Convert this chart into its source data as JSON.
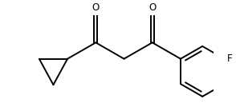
{
  "background_color": "#ffffff",
  "line_color": "#000000",
  "line_width": 1.4,
  "font_size": 8.5,
  "fig_width": 2.94,
  "fig_height": 1.34,
  "dpi": 100,
  "F_label": "F",
  "O1_label": "O",
  "O2_label": "O"
}
